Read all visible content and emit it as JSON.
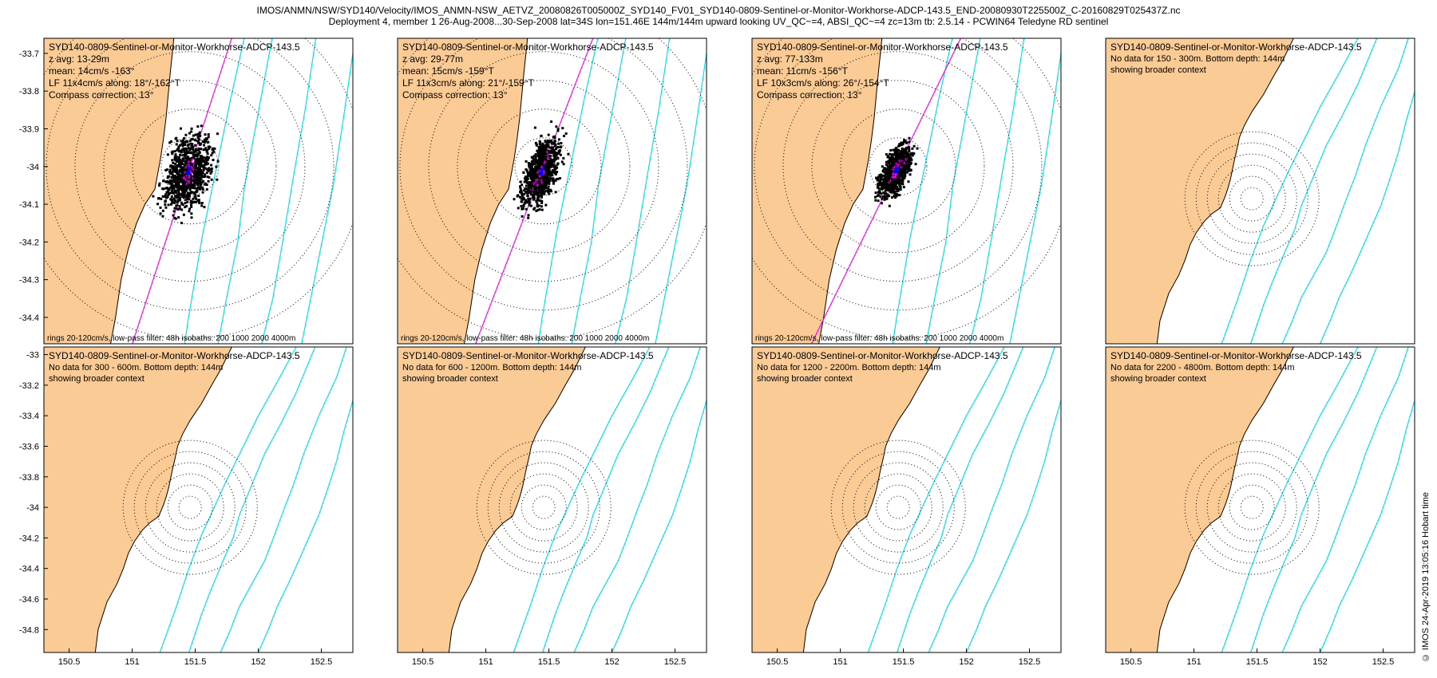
{
  "figure": {
    "title_line1": "IMOS/ANMN/NSW/SYD140/Velocity/IMOS_ANMN-NSW_AETVZ_20080826T005000Z_SYD140_FV01_SYD140-0809-Sentinel-or-Monitor-Workhorse-ADCP-143.5_END-20080930T225500Z_C-20160829T025437Z.nc",
    "title_line2": "Deployment 4, member 1 26-Aug-2008...30-Sep-2008 lat=34S lon=151.46E 144m/144m upward looking UV_QC~=4, ABSI_QC~=4 zc=13m tb: 2.5.14 - PCWIN64 Teledyne RD sentinel",
    "credit": "© IMOS 24-Apr-2019 13:05:16 Hobart time"
  },
  "colors": {
    "land": "#fbcb95",
    "isobath": "#00e0f0",
    "axis_line": "#ff00ff",
    "scatter": "#000000",
    "lowpass_points": "#ff00ff",
    "mean_vector": "#0000ff",
    "rings": "#000000"
  },
  "chart_data": [
    {
      "type": "scatter",
      "panel": 1,
      "title": "SYD140-0809-Sentinel-or-Monitor-Workhorse-ADCP-143.5",
      "info_lines": [
        "z avg: 13-29m",
        "mean: 14cm/s -163°",
        "LF 11x4cm/s along: 18°/-162°T",
        "Compass correction: 13°"
      ],
      "footer": "rings 20-120cm/s, low-pass filter: 48h isobaths: 200 1000 2000 4000m",
      "xlim": [
        150.42,
        152.62
      ],
      "ylim": [
        -34.47,
        -33.66
      ],
      "yticks": [
        -33.7,
        -33.8,
        -33.9,
        -34,
        -34.1,
        -34.2,
        -34.3,
        -34.4
      ],
      "xticks": [],
      "has_data": true,
      "mooring": {
        "lon": 151.46,
        "lat": -34.0
      },
      "rings_cm_s": [
        20,
        40,
        60,
        80,
        100,
        120
      ],
      "principal_axis_deg_true": 18,
      "mean_cm_s": 14,
      "mean_dir_deg": -163,
      "lf_major_cm_s": 11,
      "lf_minor_cm_s": 4,
      "spread_cm_s": [
        14,
        26
      ]
    },
    {
      "type": "scatter",
      "panel": 2,
      "title": "SYD140-0809-Sentinel-or-Monitor-Workhorse-ADCP-143.5",
      "info_lines": [
        "z avg: 29-77m",
        "mean: 15cm/s -159°T",
        "LF 11x3cm/s along: 21°/-159°T",
        "Compass correction: 13°"
      ],
      "footer": "rings 20-120cm/s, low-pass filter: 48h isobaths: 200 1000 2000 4000m",
      "xlim": [
        150.42,
        152.62
      ],
      "ylim": [
        -34.47,
        -33.66
      ],
      "yticks": [],
      "xticks": [],
      "has_data": true,
      "mooring": {
        "lon": 151.46,
        "lat": -34.0
      },
      "rings_cm_s": [
        20,
        40,
        60,
        80,
        100,
        120
      ],
      "principal_axis_deg_true": 21,
      "mean_cm_s": 15,
      "mean_dir_deg": -159,
      "lf_major_cm_s": 11,
      "lf_minor_cm_s": 3,
      "spread_cm_s": [
        10,
        24
      ]
    },
    {
      "type": "scatter",
      "panel": 3,
      "title": "SYD140-0809-Sentinel-or-Monitor-Workhorse-ADCP-143.5",
      "info_lines": [
        "z avg: 77-133m",
        "mean: 11cm/s -156°T",
        "LF 10x3cm/s along: 26°/-154°T",
        "Compass correction: 13°"
      ],
      "footer": "rings 20-120cm/s, low-pass filter: 48h isobaths: 200 1000 2000 4000m",
      "xlim": [
        150.42,
        152.62
      ],
      "ylim": [
        -34.47,
        -33.66
      ],
      "yticks": [],
      "xticks": [],
      "has_data": true,
      "mooring": {
        "lon": 151.46,
        "lat": -34.0
      },
      "rings_cm_s": [
        20,
        40,
        60,
        80,
        100,
        120
      ],
      "principal_axis_deg_true": 26,
      "mean_cm_s": 11,
      "mean_dir_deg": -156,
      "lf_major_cm_s": 10,
      "lf_minor_cm_s": 3,
      "spread_cm_s": [
        8,
        18
      ]
    },
    {
      "type": "scatter",
      "panel": 4,
      "title": "SYD140-0809-Sentinel-or-Monitor-Workhorse-ADCP-143.5",
      "info_lines": [
        "No data for 150 - 300m. Bottom depth: 144m",
        "showing broader context"
      ],
      "footer": "",
      "xlim": [
        150.3,
        152.75
      ],
      "ylim": [
        -34.95,
        -32.95
      ],
      "yticks": [],
      "xticks": [],
      "has_data": false,
      "mooring": {
        "lon": 151.46,
        "lat": -34.0
      }
    },
    {
      "type": "scatter",
      "panel": 5,
      "title": "SYD140-0809-Sentinel-or-Monitor-Workhorse-ADCP-143.5",
      "info_lines": [
        "No data for 300 - 600m. Bottom depth: 144m",
        "showing broader context"
      ],
      "footer": "",
      "xlim": [
        150.3,
        152.75
      ],
      "ylim": [
        -34.95,
        -32.95
      ],
      "yticks": [
        -33,
        -33.2,
        -33.4,
        -33.6,
        -33.8,
        -34,
        -34.2,
        -34.4,
        -34.6,
        -34.8
      ],
      "xticks": [
        150.5,
        151,
        151.5,
        152,
        152.5
      ],
      "has_data": false,
      "mooring": {
        "lon": 151.46,
        "lat": -34.0
      }
    },
    {
      "type": "scatter",
      "panel": 6,
      "title": "SYD140-0809-Sentinel-or-Monitor-Workhorse-ADCP-143.5",
      "info_lines": [
        "No data for 600 - 1200m. Bottom depth: 144m",
        "showing broader context"
      ],
      "footer": "",
      "xlim": [
        150.3,
        152.75
      ],
      "ylim": [
        -34.95,
        -32.95
      ],
      "yticks": [],
      "xticks": [
        150.5,
        151,
        151.5,
        152,
        152.5
      ],
      "has_data": false,
      "mooring": {
        "lon": 151.46,
        "lat": -34.0
      }
    },
    {
      "type": "scatter",
      "panel": 7,
      "title": "SYD140-0809-Sentinel-or-Monitor-Workhorse-ADCP-143.5",
      "info_lines": [
        "No data for 1200 - 2200m. Bottom depth: 144m",
        "showing broader context"
      ],
      "footer": "",
      "xlim": [
        150.3,
        152.75
      ],
      "ylim": [
        -34.95,
        -32.95
      ],
      "yticks": [],
      "xticks": [
        150.5,
        151,
        151.5,
        152,
        152.5
      ],
      "has_data": false,
      "mooring": {
        "lon": 151.46,
        "lat": -34.0
      }
    },
    {
      "type": "scatter",
      "panel": 8,
      "title": "SYD140-0809-Sentinel-or-Monitor-Workhorse-ADCP-143.5",
      "info_lines": [
        "No data for 2200 - 4800m. Bottom depth: 144m",
        "showing broader context"
      ],
      "footer": "",
      "xlim": [
        150.3,
        152.75
      ],
      "ylim": [
        -34.95,
        -32.95
      ],
      "yticks": [],
      "xticks": [
        150.5,
        151,
        151.5,
        152,
        152.5
      ],
      "has_data": false,
      "mooring": {
        "lon": 151.46,
        "lat": -34.0
      }
    }
  ]
}
